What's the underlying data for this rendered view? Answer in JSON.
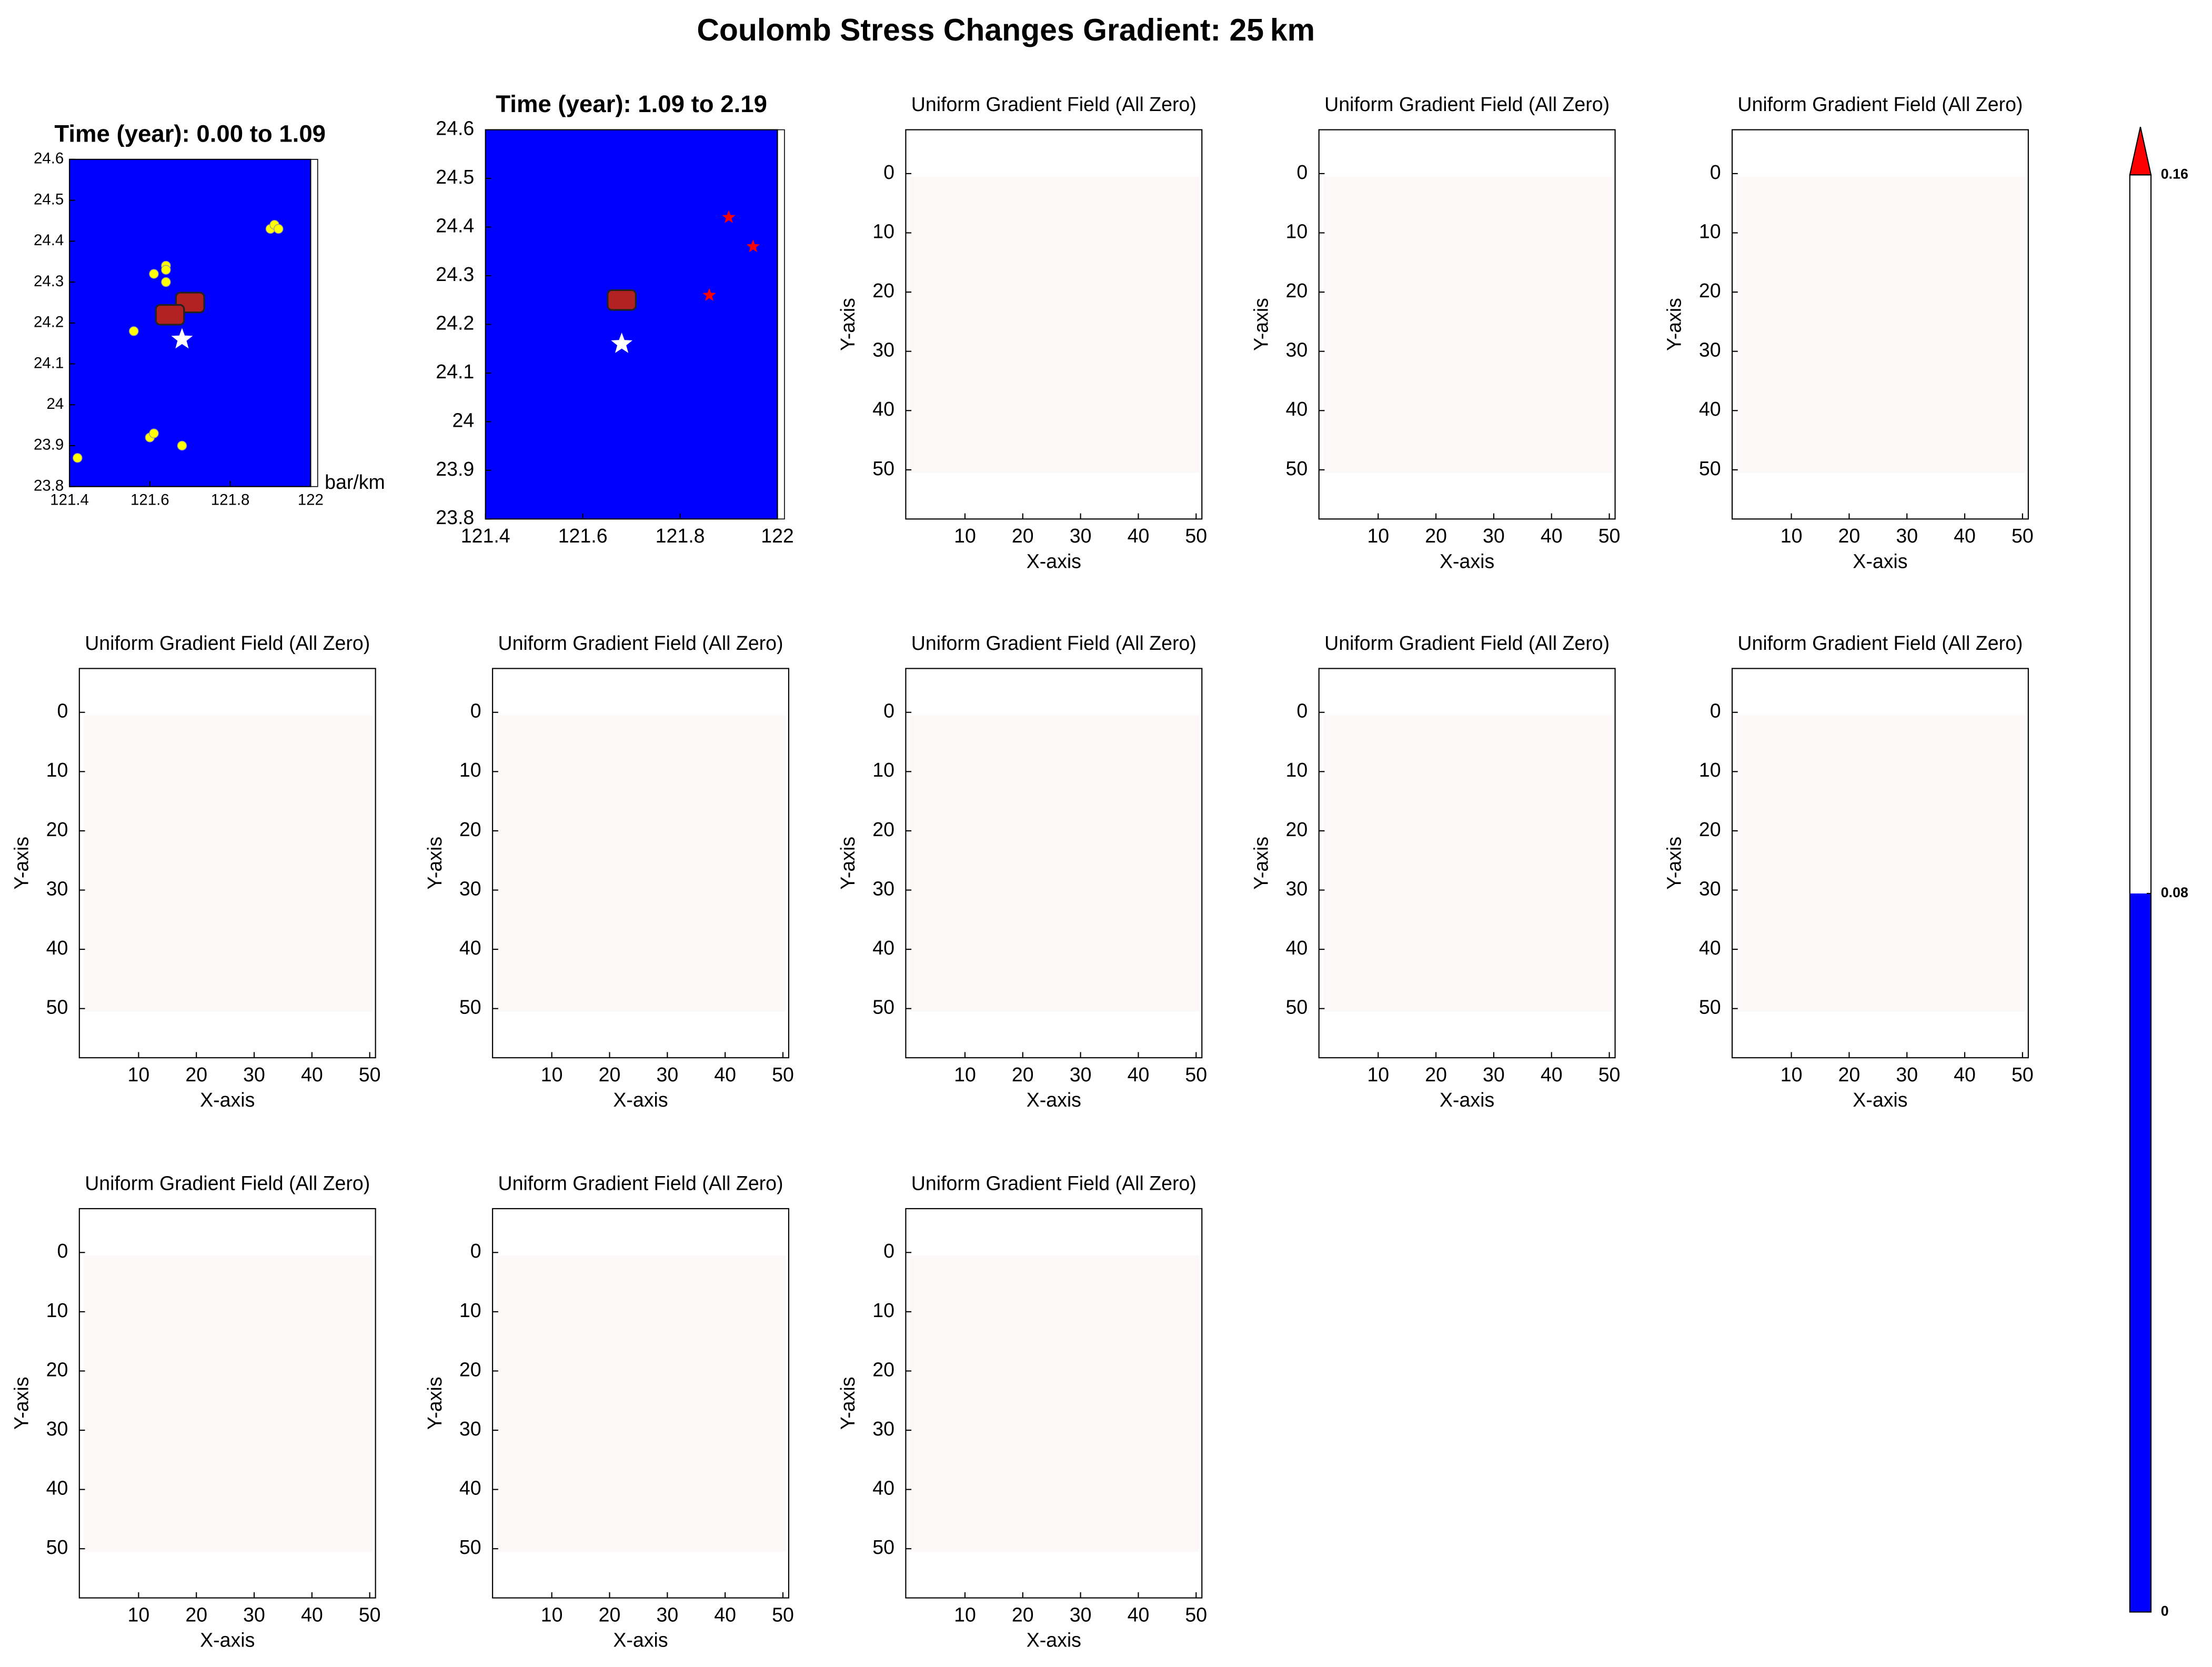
{
  "title": "Coulomb Stress Changes Gradient: 25 km",
  "colorbar": {
    "ticks": [
      0,
      0.08,
      0.16
    ],
    "colors": [
      "#0000ff",
      "#ffffff"
    ],
    "extend_color": "#ff0000"
  },
  "chart_data": [
    {
      "type": "map",
      "title": "Time (year): 0.00 to 1.09",
      "colorbar_label": "bar/km",
      "background": "#0000ff",
      "xlim": [
        121.4,
        122
      ],
      "xticks": [
        121.4,
        121.6,
        121.8,
        122
      ],
      "ylim": [
        23.8,
        24.6
      ],
      "yticks": [
        23.8,
        23.9,
        24,
        24.1,
        24.2,
        24.3,
        24.4,
        24.5,
        24.6
      ],
      "series": [
        {
          "marker": "circle",
          "color": "#ffff00",
          "x": [
            121.42,
            121.6,
            121.61,
            121.68,
            121.56,
            121.61,
            121.64,
            121.64,
            121.64,
            121.9,
            121.91,
            121.92
          ],
          "y": [
            23.87,
            23.92,
            23.93,
            23.9,
            24.18,
            24.32,
            24.34,
            24.33,
            24.3,
            24.43,
            24.44,
            24.43
          ]
        },
        {
          "marker": "fault",
          "color": "#b22222",
          "x": [
            121.7,
            121.65
          ],
          "y": [
            24.25,
            24.22
          ]
        },
        {
          "marker": "star",
          "color": "#ffffff",
          "x": [
            121.68
          ],
          "y": [
            24.16
          ]
        }
      ]
    },
    {
      "type": "map",
      "title": "Time (year): 1.09 to 2.19",
      "background": "#0000ff",
      "xlim": [
        121.4,
        122
      ],
      "xticks": [
        121.4,
        121.6,
        121.8,
        122
      ],
      "ylim": [
        23.8,
        24.6
      ],
      "yticks": [
        23.8,
        23.9,
        24,
        24.1,
        24.2,
        24.3,
        24.4,
        24.5,
        24.6
      ],
      "series": [
        {
          "marker": "fault",
          "color": "#b22222",
          "x": [
            121.68
          ],
          "y": [
            24.25
          ]
        },
        {
          "marker": "star",
          "color": "#ffffff",
          "x": [
            121.68
          ],
          "y": [
            24.16
          ]
        },
        {
          "marker": "smallstar",
          "color": "#ff0000",
          "x": [
            121.9,
            121.95,
            121.86
          ],
          "y": [
            24.42,
            24.36,
            24.26
          ]
        }
      ]
    },
    {
      "type": "heatmap",
      "title": "Uniform Gradient Field (All Zero)",
      "xlabel": "X-axis",
      "ylabel": "Y-axis",
      "value": 0,
      "color": "#fdf8f8",
      "x_extent": [
        0.5,
        50.5
      ],
      "y_extent": [
        0.5,
        50.5
      ],
      "xlim": [
        -0.25,
        51
      ],
      "ylim": [
        58.3,
        -7.4
      ],
      "xticks": [
        10,
        20,
        30,
        40,
        50
      ],
      "yticks": [
        0,
        10,
        20,
        30,
        40,
        50
      ]
    },
    {
      "type": "heatmap",
      "title": "Uniform Gradient Field (All Zero)",
      "xlabel": "X-axis",
      "ylabel": "Y-axis",
      "value": 0,
      "color": "#fdf8f8",
      "x_extent": [
        0.5,
        50.5
      ],
      "y_extent": [
        0.5,
        50.5
      ],
      "xlim": [
        -0.25,
        51
      ],
      "ylim": [
        58.3,
        -7.4
      ],
      "xticks": [
        10,
        20,
        30,
        40,
        50
      ],
      "yticks": [
        0,
        10,
        20,
        30,
        40,
        50
      ]
    },
    {
      "type": "heatmap",
      "title": "Uniform Gradient Field (All Zero)",
      "xlabel": "X-axis",
      "ylabel": "Y-axis",
      "value": 0,
      "color": "#fdf8f8",
      "x_extent": [
        0.5,
        50.5
      ],
      "y_extent": [
        0.5,
        50.5
      ],
      "xlim": [
        -0.25,
        51
      ],
      "ylim": [
        58.3,
        -7.4
      ],
      "xticks": [
        10,
        20,
        30,
        40,
        50
      ],
      "yticks": [
        0,
        10,
        20,
        30,
        40,
        50
      ]
    },
    {
      "type": "heatmap",
      "title": "Uniform Gradient Field (All Zero)",
      "xlabel": "X-axis",
      "ylabel": "Y-axis",
      "value": 0,
      "color": "#fdf8f8",
      "x_extent": [
        0.5,
        50.5
      ],
      "y_extent": [
        0.5,
        50.5
      ],
      "xlim": [
        -0.25,
        51
      ],
      "ylim": [
        58.3,
        -7.4
      ],
      "xticks": [
        10,
        20,
        30,
        40,
        50
      ],
      "yticks": [
        0,
        10,
        20,
        30,
        40,
        50
      ]
    },
    {
      "type": "heatmap",
      "title": "Uniform Gradient Field (All Zero)",
      "xlabel": "X-axis",
      "ylabel": "Y-axis",
      "value": 0,
      "color": "#fdf8f8",
      "x_extent": [
        0.5,
        50.5
      ],
      "y_extent": [
        0.5,
        50.5
      ],
      "xlim": [
        -0.25,
        51
      ],
      "ylim": [
        58.3,
        -7.4
      ],
      "xticks": [
        10,
        20,
        30,
        40,
        50
      ],
      "yticks": [
        0,
        10,
        20,
        30,
        40,
        50
      ]
    },
    {
      "type": "heatmap",
      "title": "Uniform Gradient Field (All Zero)",
      "xlabel": "X-axis",
      "ylabel": "Y-axis",
      "value": 0,
      "color": "#fdf8f8",
      "x_extent": [
        0.5,
        50.5
      ],
      "y_extent": [
        0.5,
        50.5
      ],
      "xlim": [
        -0.25,
        51
      ],
      "ylim": [
        58.3,
        -7.4
      ],
      "xticks": [
        10,
        20,
        30,
        40,
        50
      ],
      "yticks": [
        0,
        10,
        20,
        30,
        40,
        50
      ]
    },
    {
      "type": "heatmap",
      "title": "Uniform Gradient Field (All Zero)",
      "xlabel": "X-axis",
      "ylabel": "Y-axis",
      "value": 0,
      "color": "#fdf8f8",
      "x_extent": [
        0.5,
        50.5
      ],
      "y_extent": [
        0.5,
        50.5
      ],
      "xlim": [
        -0.25,
        51
      ],
      "ylim": [
        58.3,
        -7.4
      ],
      "xticks": [
        10,
        20,
        30,
        40,
        50
      ],
      "yticks": [
        0,
        10,
        20,
        30,
        40,
        50
      ]
    },
    {
      "type": "heatmap",
      "title": "Uniform Gradient Field (All Zero)",
      "xlabel": "X-axis",
      "ylabel": "Y-axis",
      "value": 0,
      "color": "#fdf8f8",
      "x_extent": [
        0.5,
        50.5
      ],
      "y_extent": [
        0.5,
        50.5
      ],
      "xlim": [
        -0.25,
        51
      ],
      "ylim": [
        58.3,
        -7.4
      ],
      "xticks": [
        10,
        20,
        30,
        40,
        50
      ],
      "yticks": [
        0,
        10,
        20,
        30,
        40,
        50
      ]
    },
    {
      "type": "heatmap",
      "title": "Uniform Gradient Field (All Zero)",
      "xlabel": "X-axis",
      "ylabel": "Y-axis",
      "value": 0,
      "color": "#fdf8f8",
      "x_extent": [
        0.5,
        50.5
      ],
      "y_extent": [
        0.5,
        50.5
      ],
      "xlim": [
        -0.25,
        51
      ],
      "ylim": [
        58.3,
        -7.4
      ],
      "xticks": [
        10,
        20,
        30,
        40,
        50
      ],
      "yticks": [
        0,
        10,
        20,
        30,
        40,
        50
      ]
    },
    {
      "type": "heatmap",
      "title": "Uniform Gradient Field (All Zero)",
      "xlabel": "X-axis",
      "ylabel": "Y-axis",
      "value": 0,
      "color": "#fdf8f8",
      "x_extent": [
        0.5,
        50.5
      ],
      "y_extent": [
        0.5,
        50.5
      ],
      "xlim": [
        -0.25,
        51
      ],
      "ylim": [
        58.3,
        -7.4
      ],
      "xticks": [
        10,
        20,
        30,
        40,
        50
      ],
      "yticks": [
        0,
        10,
        20,
        30,
        40,
        50
      ]
    },
    {
      "type": "heatmap",
      "title": "Uniform Gradient Field (All Zero)",
      "xlabel": "X-axis",
      "ylabel": "Y-axis",
      "value": 0,
      "color": "#fdf8f8",
      "x_extent": [
        0.5,
        50.5
      ],
      "y_extent": [
        0.5,
        50.5
      ],
      "xlim": [
        -0.25,
        51
      ],
      "ylim": [
        58.3,
        -7.4
      ],
      "xticks": [
        10,
        20,
        30,
        40,
        50
      ],
      "yticks": [
        0,
        10,
        20,
        30,
        40,
        50
      ]
    }
  ]
}
